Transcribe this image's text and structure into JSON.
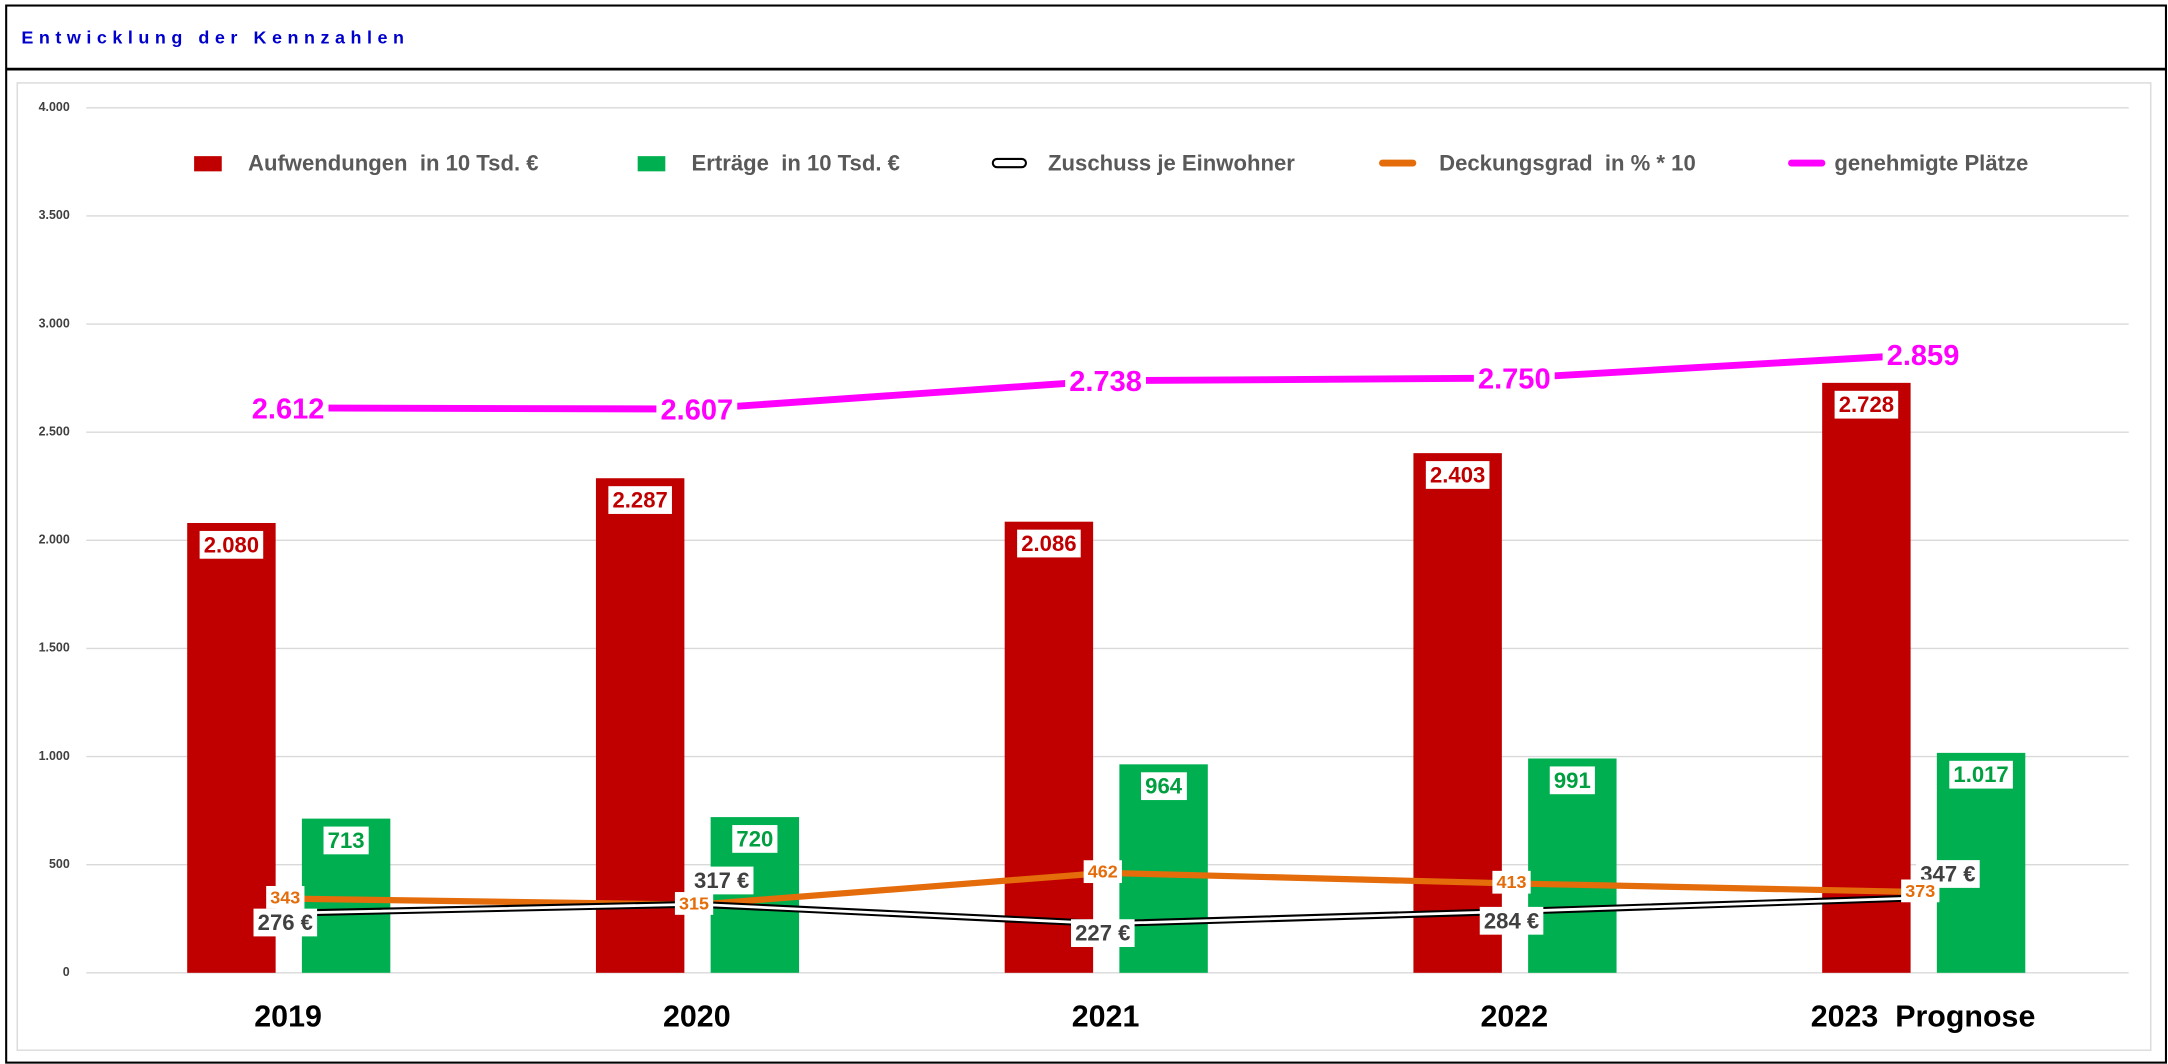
{
  "title": "Entwicklung der Kennzahlen",
  "chart_data": {
    "type": "bar",
    "categories": [
      "2019",
      "2020",
      "2021",
      "2022",
      "2023  Prognose"
    ],
    "ylim": [
      0,
      4000
    ],
    "yticks": [
      0,
      500,
      {
        "value": 1000,
        "label": "1.000"
      },
      {
        "value": 1500,
        "label": "1.500"
      },
      {
        "value": 2000,
        "label": "2.000"
      },
      {
        "value": 2500,
        "label": "2.500"
      },
      {
        "value": 3000,
        "label": "3.000"
      },
      {
        "value": 3500,
        "label": "3.500"
      },
      {
        "value": 4000,
        "label": "4.000"
      }
    ],
    "grid": true,
    "legend": "top",
    "series": [
      {
        "name": "Aufwendungen  in 10 Tsd. €",
        "type": "bar",
        "color": "#c00000",
        "values": [
          2080,
          2287,
          2086,
          2403,
          2728
        ],
        "value_labels": [
          "2.080",
          "2.287",
          "2.086",
          "2.403",
          "2.728"
        ]
      },
      {
        "name": "Erträge  in 10 Tsd. €",
        "type": "bar",
        "color": "#00b050",
        "values": [
          713,
          720,
          964,
          991,
          1017
        ],
        "value_labels": [
          "713",
          "720",
          "964",
          "991",
          "1.017"
        ]
      },
      {
        "name": "Zuschuss je Einwohner",
        "type": "line",
        "color": "#000000",
        "values": [
          276,
          317,
          227,
          284,
          347
        ],
        "value_labels": [
          "276 €",
          "317 €",
          "227 €",
          "284 €",
          "347 €"
        ]
      },
      {
        "name": "Deckungsgrad  in % * 10",
        "type": "line",
        "color": "#e46c0a",
        "values": [
          343,
          315,
          462,
          413,
          373
        ]
      },
      {
        "name": "genehmigte Plätze",
        "type": "line",
        "color": "#ff00ff",
        "values": [
          2612,
          2607,
          2738,
          2750,
          2859
        ],
        "value_labels": [
          "2.612",
          "2.607",
          "2.738",
          "2.750",
          "2.859"
        ]
      }
    ]
  }
}
